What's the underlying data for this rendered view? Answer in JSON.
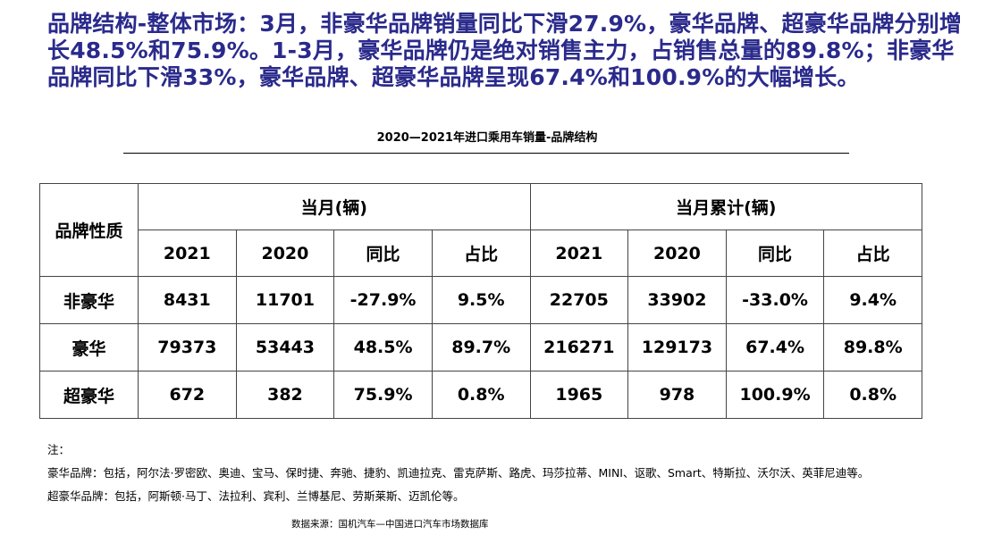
{
  "headline": "品牌结构-整体市场：3月，非豪华品牌销量同比下滑27.9%，豪华品牌、超豪华品牌分别增长48.5%和75.9%。1-3月，豪华品牌仍是绝对销售主力，占销售总量的89.8%；非豪华品牌同比下滑33%，豪华品牌、超豪华品牌呈现67.4%和100.9%的大幅增长。",
  "table_title": "2020—2021年进口乘用车销量-品牌结构",
  "table": {
    "row_header": "品牌性质",
    "group_month": "当月(辆)",
    "group_cumulative": "当月累计(辆)",
    "subheaders": [
      "2021",
      "2020",
      "同比",
      "占比",
      "2021",
      "2020",
      "同比",
      "占比"
    ],
    "rows": [
      {
        "label": "非豪华",
        "cells": [
          "8431",
          "11701",
          "-27.9%",
          "9.5%",
          "22705",
          "33902",
          "-33.0%",
          "9.4%"
        ]
      },
      {
        "label": "豪华",
        "cells": [
          "79373",
          "53443",
          "48.5%",
          "89.7%",
          "216271",
          "129173",
          "67.4%",
          "89.8%"
        ]
      },
      {
        "label": "超豪华",
        "cells": [
          "672",
          "382",
          "75.9%",
          "0.8%",
          "1965",
          "978",
          "100.9%",
          "0.8%"
        ]
      }
    ]
  },
  "notes": {
    "label": "注：",
    "luxury": "豪华品牌：包括，阿尔法·罗密欧、奥迪、宝马、保时捷、奔驰、捷豹、凯迪拉克、雷克萨斯、路虎、玛莎拉蒂、MINI、讴歌、Smart、特斯拉、沃尔沃、英菲尼迪等。",
    "super_luxury": "超豪华品牌：包括，阿斯顿·马丁、法拉利、宾利、兰博基尼、劳斯莱斯、迈凯伦等。"
  },
  "source": "数据来源：国机汽车—中国进口汽车市场数据库",
  "colors": {
    "headline": "#2a2a8c"
  }
}
